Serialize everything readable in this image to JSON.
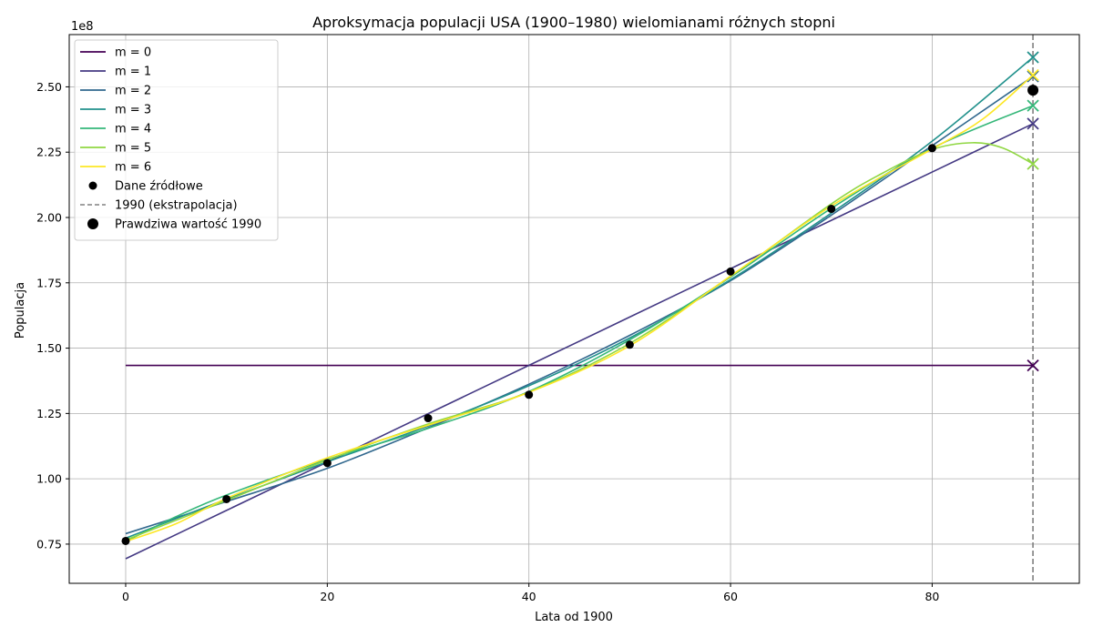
{
  "chart_data": {
    "type": "line",
    "title": "Aproksymacja populacji USA (1900–1980) wielomianami różnych stopni",
    "xlabel": "Lata od 1900",
    "ylabel": "Populacja",
    "y_scale_label": "1e8",
    "xlim": [
      -5.6,
      94.6
    ],
    "ylim": [
      60000000,
      270000000
    ],
    "xticks": [
      0,
      20,
      40,
      60,
      80
    ],
    "yticks": [
      75000000,
      100000000,
      125000000,
      150000000,
      175000000,
      200000000,
      225000000,
      250000000
    ],
    "ytick_labels": [
      "0.75",
      "1.00",
      "1.25",
      "1.50",
      "1.75",
      "2.00",
      "2.25",
      "2.50"
    ],
    "grid": true,
    "legend_position": "upper-left",
    "source_data": {
      "name": "Dane źródłowe",
      "x": [
        0,
        10,
        20,
        30,
        40,
        50,
        60,
        70,
        80
      ],
      "y": [
        76212168,
        92228496,
        106021537,
        123202624,
        132164569,
        151325798,
        179323175,
        203302031,
        226542199
      ]
    },
    "extrapolation": {
      "name": "1990 (ekstrapolacja)",
      "x": 90
    },
    "true_value": {
      "name": "Prawdziwa wartość 1990",
      "x": 90,
      "y": 248709873
    },
    "series": [
      {
        "name": "m = 0",
        "color": "#440154",
        "x": [
          0,
          10,
          20,
          30,
          40,
          50,
          60,
          70,
          80,
          90
        ],
        "y": [
          143369177,
          143369177,
          143369177,
          143369177,
          143369177,
          143369177,
          143369177,
          143369177,
          143369177,
          143369177
        ],
        "extrapolated_1990": 143369177
      },
      {
        "name": "m = 1",
        "color": "#443983",
        "x": [
          0,
          10,
          20,
          30,
          40,
          50,
          60,
          70,
          80,
          90
        ],
        "y": [
          69400000,
          87900000,
          106400000,
          124900000,
          143400000,
          161900000,
          180400000,
          198900000,
          217400000,
          235900000
        ],
        "extrapolated_1990": 235900000
      },
      {
        "name": "m = 2",
        "color": "#31688e",
        "x": [
          0,
          10,
          20,
          30,
          40,
          50,
          60,
          70,
          80,
          90
        ],
        "y": [
          79000000,
          91300000,
          104000000,
          119500000,
          136200000,
          154900000,
          175800000,
          200900000,
          227500000,
          254000000
        ],
        "extrapolated_1990": 254000000
      },
      {
        "name": "m = 3",
        "color": "#21918c",
        "x": [
          0,
          10,
          20,
          30,
          40,
          50,
          60,
          70,
          80,
          90
        ],
        "y": [
          77300000,
          92200000,
          106500000,
          120200000,
          135600000,
          153900000,
          176200000,
          201700000,
          229200000,
          261300000
        ],
        "extrapolated_1990": 261300000
      },
      {
        "name": "m = 4",
        "color": "#35b779",
        "x": [
          0,
          5,
          10,
          20,
          30,
          40,
          50,
          60,
          70,
          80,
          90
        ],
        "y": [
          76000000,
          85500000,
          93800000,
          107400000,
          119300000,
          133400000,
          153200000,
          177200000,
          203500000,
          226500000,
          242800000
        ],
        "extrapolated_1990": 242800000
      },
      {
        "name": "m = 5",
        "color": "#90d743",
        "x": [
          0,
          10,
          20,
          30,
          40,
          50,
          60,
          70,
          75,
          80,
          84,
          87,
          90
        ],
        "y": [
          76600000,
          91700000,
          107200000,
          121000000,
          133200000,
          151800000,
          177500000,
          205200000,
          216800000,
          226000000,
          228600000,
          226600000,
          220500000
        ],
        "extrapolated_1990": 220500000
      },
      {
        "name": "m = 6",
        "color": "#fde725",
        "x": [
          0,
          5,
          10,
          20,
          30,
          40,
          50,
          60,
          70,
          80,
          85,
          90
        ],
        "y": [
          76000000,
          82800000,
          92500000,
          108000000,
          120500000,
          133100000,
          150900000,
          177600000,
          204400000,
          226200000,
          237600000,
          254500000
        ],
        "extrapolated_1990": 254500000
      }
    ]
  }
}
